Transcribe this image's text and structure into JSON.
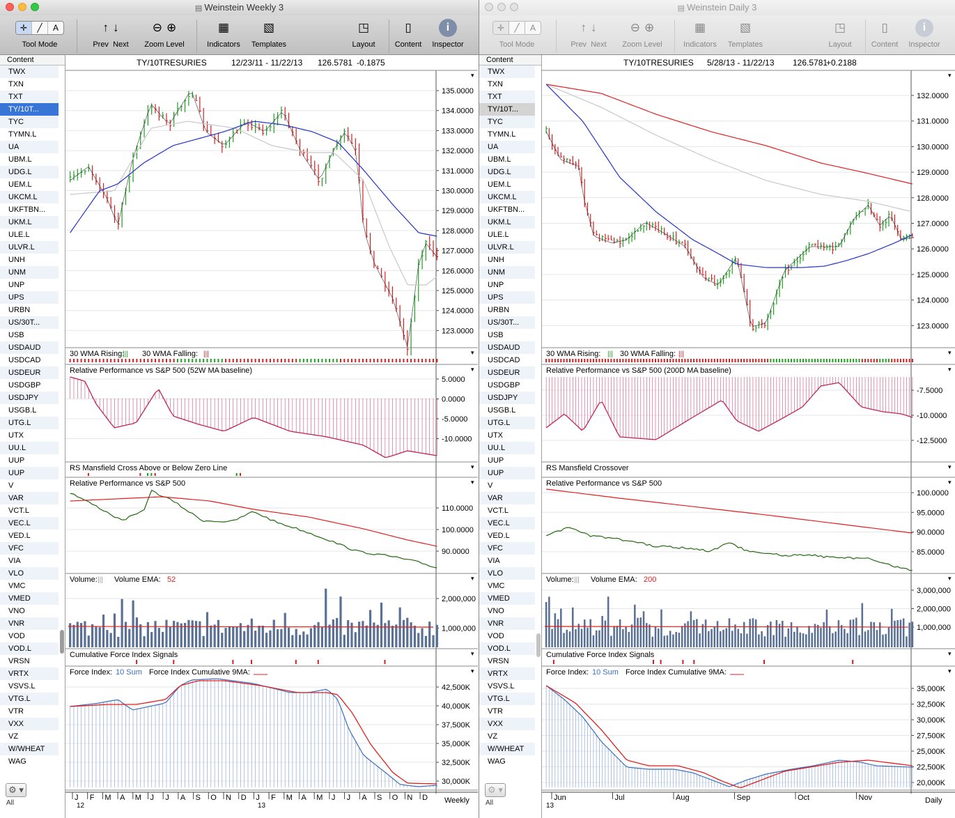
{
  "symbols": [
    "TWX",
    "TXN",
    "TXT",
    "TY/10T...",
    "TYC",
    "TYMN.L",
    "UA",
    "UBM.L",
    "UDG.L",
    "UEM.L",
    "UKCM.L",
    "UKFTBN...",
    "UKM.L",
    "ULE.L",
    "ULVR.L",
    "UNH",
    "UNM",
    "UNP",
    "UPS",
    "URBN",
    "US/30T...",
    "USB",
    "USDAUD",
    "USDCAD",
    "USDEUR",
    "USDGBP",
    "USDJPY",
    "USGB.L",
    "UTG.L",
    "UTX",
    "UU.L",
    "UUP",
    "UUP",
    "V",
    "VAR",
    "VCT.L",
    "VEC.L",
    "VED.L",
    "VFC",
    "VIA",
    "VLO",
    "VMC",
    "VMED",
    "VNO",
    "VNR",
    "VOD",
    "VOD.L",
    "VRSN",
    "VRTX",
    "VSVS.L",
    "VTG.L",
    "VTR",
    "VXX",
    "VZ",
    "W/WHEAT",
    "WAG"
  ],
  "colors": {
    "up": "#1ea01e",
    "down": "#d22020",
    "ma_blue": "#2233cc",
    "ma_red": "#e02020",
    "ma_gray": "#c8c8c8",
    "rel_green": "#226a10",
    "rel_magenta": "#c0245c",
    "force_blue": "#3a6fc0",
    "volume": "#5a7094",
    "selection": "#3875d7"
  },
  "toolbar": {
    "tool_mode": "Tool Mode",
    "prev": "Prev",
    "next": "Next",
    "zoom_level": "Zoom Level",
    "indicators": "Indicators",
    "templates": "Templates",
    "layout": "Layout",
    "content": "Content",
    "inspector": "Inspector",
    "icons": [
      "crosshair-icon",
      "line-tool-icon",
      "text-tool-icon",
      "up-arrow-icon",
      "down-arrow-icon",
      "zoom-out-icon",
      "zoom-in-icon",
      "indicators-icon",
      "templates-icon",
      "layout-icon",
      "content-icon",
      "inspector-info-icon"
    ]
  },
  "sidebar": {
    "header": "Content",
    "all_label": "All",
    "gear": "⚙"
  },
  "windows": [
    {
      "id": "left",
      "title": "Weinstein Weekly 3",
      "selected_symbol": "TY/10T...",
      "header": {
        "symbol": "TY/10TRESURIES",
        "range": "12/23/11 - 11/22/13",
        "price": "126.5781",
        "change": "-0.1875"
      },
      "panes": {
        "price": {
          "ticks": [
            "135.0000",
            "134.0000",
            "133.0000",
            "132.0000",
            "131.0000",
            "130.0000",
            "129.0000",
            "128.0000",
            "127.0000",
            "126.0000",
            "125.0000",
            "124.0000",
            "123.0000"
          ]
        },
        "wma": {
          "label_rising": "30 WMA Rising:",
          "label_falling": "30 WMA Falling:",
          "rising_marker": "|||",
          "falling_marker": "|||"
        },
        "relperf_ma": {
          "title": "Relative Performance vs S&P 500 (52W MA baseline)",
          "ticks": [
            "5.0000",
            "0.0000",
            "-5.0000",
            "-10.0000"
          ]
        },
        "rs_mansfield": {
          "title": "RS Mansfield Cross Above or Below Zero Line"
        },
        "relperf": {
          "title": "Relative Performance vs S&P 500",
          "ticks": [
            "110.0000",
            "100.0000",
            "90.0000"
          ]
        },
        "volume": {
          "label": "Volume:",
          "marker": "|||",
          "ema_label": "Volume EMA:",
          "ema_value": "52",
          "ticks": [
            "2,000,000",
            "1,000,000"
          ]
        },
        "cfi": {
          "title": "Cumulative Force Index Signals"
        },
        "force": {
          "label": "Force Index:",
          "sum": "10 Sum",
          "cum_label": "Force Index Cumulative 9MA:",
          "ticks": [
            "42,500K",
            "40,000K",
            "37,500K",
            "35,000K",
            "32,500K",
            "30,000K"
          ]
        }
      },
      "xaxis": {
        "months": [
          "J",
          "F",
          "M",
          "A",
          "M",
          "J",
          "J",
          "A",
          "S",
          "O",
          "N",
          "D",
          "J",
          "F",
          "M",
          "A",
          "M",
          "J",
          "J",
          "A",
          "S",
          "O",
          "N",
          "D"
        ],
        "years": [
          "12",
          "13"
        ],
        "period": "Weekly"
      }
    },
    {
      "id": "right",
      "title": "Weinstein Daily 3",
      "selected_symbol": "TY/10T...",
      "header": {
        "symbol": "TY/10TRESURIES",
        "range": "5/28/13 - 11/22/13",
        "price": "126.5781",
        "change": "+0.2188"
      },
      "panes": {
        "price": {
          "ticks": [
            "132.0000",
            "131.0000",
            "130.0000",
            "129.0000",
            "128.0000",
            "127.0000",
            "126.0000",
            "125.0000",
            "124.0000",
            "123.0000"
          ]
        },
        "wma": {
          "label_rising": "30 WMA Rising:",
          "label_falling": "30 WMA Falling:",
          "rising_marker": "|||",
          "falling_marker": "|||"
        },
        "relperf_ma": {
          "title": "Relative Performance vs S&P 500 (200D MA baseline)",
          "ticks": [
            "-7.5000",
            "-10.0000",
            "-12.5000"
          ]
        },
        "rs_mansfield": {
          "title": "RS Mansfield Crossover"
        },
        "relperf": {
          "title": "Relative Performance vs S&P 500",
          "ticks": [
            "100.0000",
            "95.0000",
            "90.0000",
            "85.0000"
          ]
        },
        "volume": {
          "label": "Volume:",
          "marker": "|||",
          "ema_label": "Volume EMA:",
          "ema_value": "200",
          "ticks": [
            "3,000,000",
            "2,000,000",
            "1,000,000"
          ]
        },
        "cfi": {
          "title": "Cumulative Force Index Signals"
        },
        "force": {
          "label": "Force Index:",
          "sum": "10 Sum",
          "cum_label": "Force Index Cumulative 9MA:",
          "ticks": [
            "35,000K",
            "32,500K",
            "30,000K",
            "27,500K",
            "25,000K",
            "22,500K",
            "20,000K"
          ]
        }
      },
      "xaxis": {
        "months": [
          "Jun",
          "Jul",
          "Aug",
          "Sep",
          "Oct",
          "Nov"
        ],
        "years": [
          "13"
        ],
        "period": "Daily"
      }
    }
  ]
}
